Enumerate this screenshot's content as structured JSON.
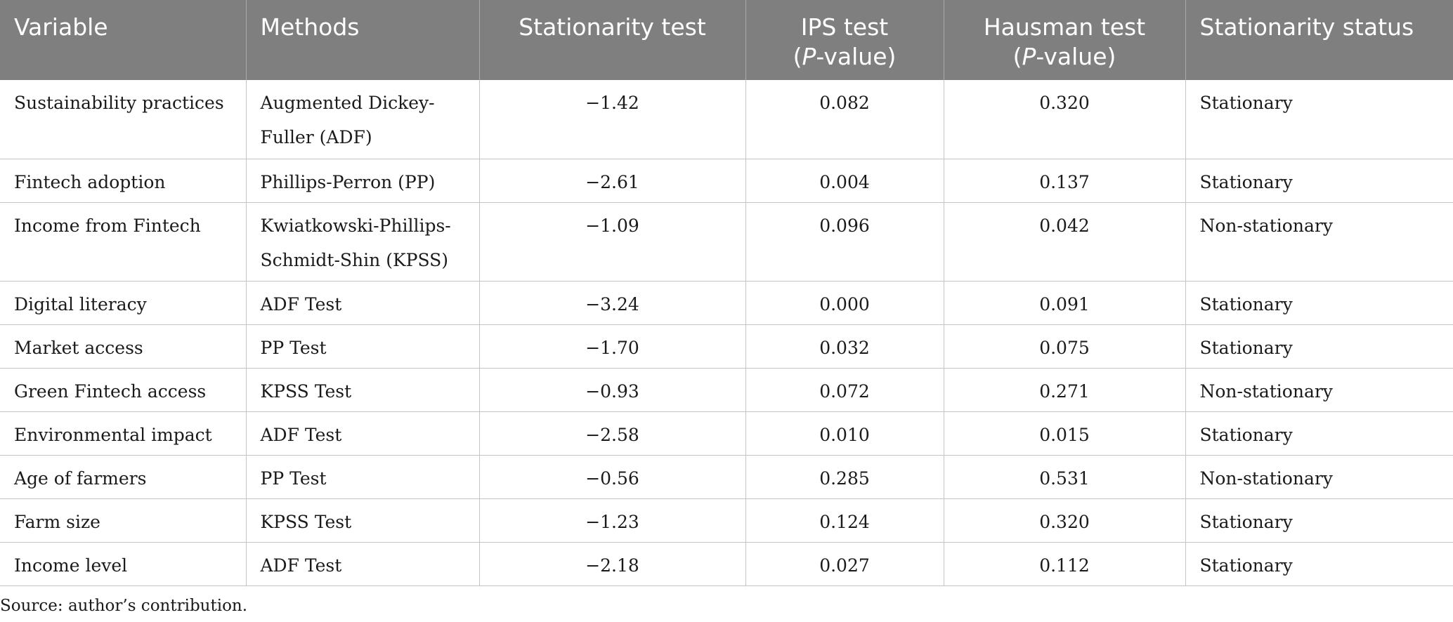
{
  "table": {
    "headers": [
      {
        "text": "Variable",
        "pvalue": ""
      },
      {
        "text": "Methods",
        "pvalue": ""
      },
      {
        "text": "Stationarity test",
        "pvalue": ""
      },
      {
        "text": "IPS test",
        "pvalue": "-value)"
      },
      {
        "text": "Hausman test",
        "pvalue": "-value)"
      },
      {
        "text": "Stationarity status",
        "pvalue": ""
      }
    ],
    "pvalue_prefix": "(",
    "pvalue_italic": "P",
    "rows": [
      {
        "variable": "Sustainability practices",
        "method": "Augmented Dickey-Fuller (ADF)",
        "stationarity": "−1.42",
        "ips": "0.082",
        "hausman": "0.320",
        "status": "Stationary"
      },
      {
        "variable": "Fintech adoption",
        "method": "Phillips-Perron (PP)",
        "stationarity": "−2.61",
        "ips": "0.004",
        "hausman": "0.137",
        "status": "Stationary"
      },
      {
        "variable": "Income from Fintech",
        "method": "Kwiatkowski-Phillips-Schmidt-Shin (KPSS)",
        "stationarity": "−1.09",
        "ips": "0.096",
        "hausman": "0.042",
        "status": "Non-stationary"
      },
      {
        "variable": "Digital literacy",
        "method": "ADF Test",
        "stationarity": "−3.24",
        "ips": "0.000",
        "hausman": "0.091",
        "status": "Stationary"
      },
      {
        "variable": "Market access",
        "method": "PP Test",
        "stationarity": "−1.70",
        "ips": "0.032",
        "hausman": "0.075",
        "status": "Stationary"
      },
      {
        "variable": "Green Fintech access",
        "method": "KPSS Test",
        "stationarity": "−0.93",
        "ips": "0.072",
        "hausman": "0.271",
        "status": "Non-stationary"
      },
      {
        "variable": "Environmental impact",
        "method": "ADF Test",
        "stationarity": "−2.58",
        "ips": "0.010",
        "hausman": "0.015",
        "status": "Stationary"
      },
      {
        "variable": "Age of farmers",
        "method": "PP Test",
        "stationarity": "−0.56",
        "ips": "0.285",
        "hausman": "0.531",
        "status": "Non-stationary"
      },
      {
        "variable": "Farm size",
        "method": "KPSS Test",
        "stationarity": "−1.23",
        "ips": "0.124",
        "hausman": "0.320",
        "status": "Stationary"
      },
      {
        "variable": "Income level",
        "method": "ADF Test",
        "stationarity": "−2.18",
        "ips": "0.027",
        "hausman": "0.112",
        "status": "Stationary"
      }
    ]
  },
  "footnote": "Source: author’s contribution.",
  "colors": {
    "header_bg": "#7f7f7f",
    "header_text": "#ffffff",
    "grid": "#c4c4c4"
  }
}
